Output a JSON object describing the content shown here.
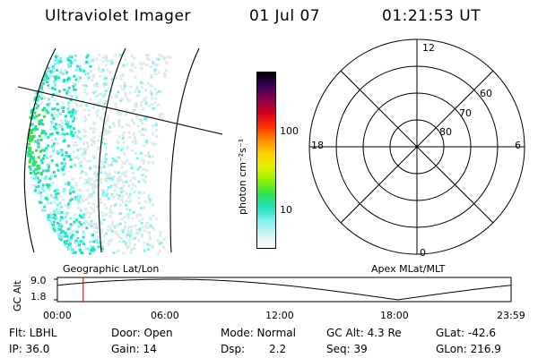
{
  "header": {
    "instrument": "Ultraviolet Imager",
    "date": "01 Jul 07",
    "time": "01:21:53 UT"
  },
  "colorbar": {
    "unit_label": "photon cm⁻²s⁻¹",
    "ticks": [
      {
        "value": 100,
        "label": "100"
      },
      {
        "value": 10,
        "label": "10"
      }
    ],
    "scale": "log",
    "colors_top_to_bottom": [
      "#000000",
      "#3a005a",
      "#8a004a",
      "#d00020",
      "#ff3000",
      "#ff8a00",
      "#ffd000",
      "#e8f000",
      "#90f000",
      "#30e050",
      "#20e0c0",
      "#80f0f0",
      "#d0f0f0",
      "#ffffff"
    ]
  },
  "polar_plot": {
    "mlt_labels": {
      "top": "12",
      "left": "18",
      "right": "6",
      "bottom": "0"
    },
    "lat_labels": [
      "60",
      "70",
      "80"
    ]
  },
  "timeline": {
    "left_label": "Geographic Lat/Lon",
    "right_label": "Apex MLat/MLT",
    "axis_title": "GC Alt",
    "y_ticks": [
      "9.0",
      "1.8"
    ],
    "x_ticks": [
      "00:00",
      "06:00",
      "12:00",
      "18:00",
      "23:59"
    ],
    "current_time_hours": 1.365
  },
  "footer": {
    "flt": "Flt: LBHL",
    "door": "Door: Open",
    "mode": "Mode: Normal",
    "gc_alt": "GC Alt: 4.3 Re",
    "glat": "GLat: -42.6",
    "ip": "IP: 36.0",
    "gain": "Gain: 14",
    "dsp_label": "Dsp:",
    "dsp_value": "2.2",
    "seq": "Seq: 39",
    "glon": "GLon: 216.9"
  }
}
